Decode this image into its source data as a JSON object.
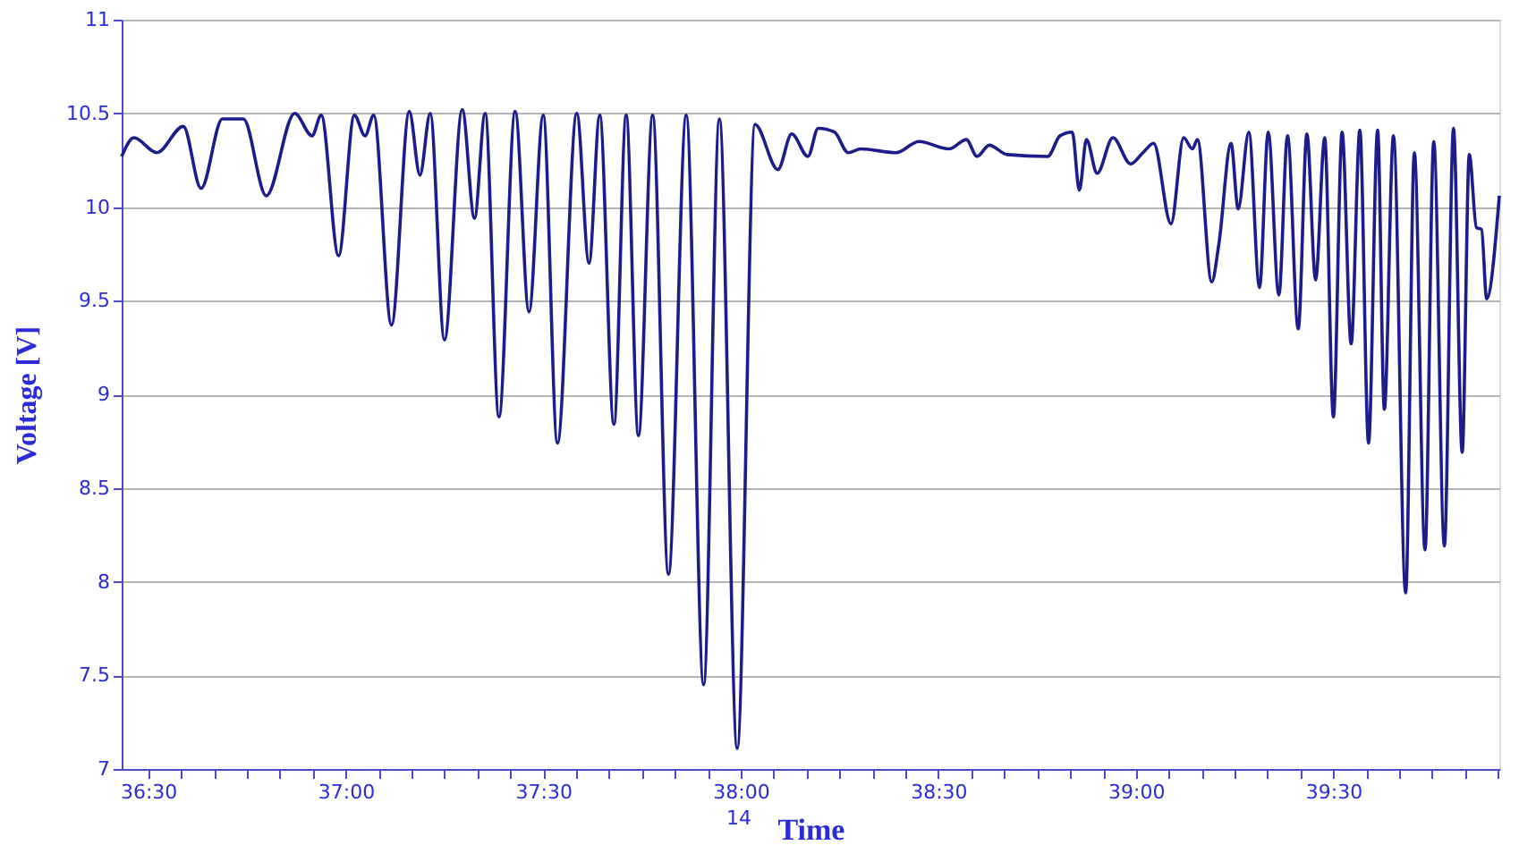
{
  "chart_data": {
    "type": "line",
    "xlabel": "Time",
    "ylabel": "Voltage [V]",
    "annotations": [
      "14"
    ],
    "xlim": [
      36.433,
      39.92
    ],
    "ylim": [
      7,
      11
    ],
    "xticks": [
      {
        "value": 36.5,
        "label": "36:30"
      },
      {
        "value": 36.583,
        "label": null
      },
      {
        "value": 36.667,
        "label": null
      },
      {
        "value": 36.75,
        "label": null
      },
      {
        "value": 36.833,
        "label": null
      },
      {
        "value": 36.917,
        "label": null
      },
      {
        "value": 37.0,
        "label": "37:00"
      },
      {
        "value": 37.083,
        "label": null
      },
      {
        "value": 37.167,
        "label": null
      },
      {
        "value": 37.25,
        "label": null
      },
      {
        "value": 37.333,
        "label": null
      },
      {
        "value": 37.417,
        "label": null
      },
      {
        "value": 37.5,
        "label": "37:30"
      },
      {
        "value": 37.583,
        "label": null
      },
      {
        "value": 37.667,
        "label": null
      },
      {
        "value": 37.75,
        "label": null
      },
      {
        "value": 37.833,
        "label": null
      },
      {
        "value": 37.917,
        "label": null
      },
      {
        "value": 38.0,
        "label": "38:00"
      },
      {
        "value": 38.083,
        "label": null
      },
      {
        "value": 38.167,
        "label": null
      },
      {
        "value": 38.25,
        "label": null
      },
      {
        "value": 38.333,
        "label": null
      },
      {
        "value": 38.417,
        "label": null
      },
      {
        "value": 38.5,
        "label": "38:30"
      },
      {
        "value": 38.583,
        "label": null
      },
      {
        "value": 38.667,
        "label": null
      },
      {
        "value": 38.75,
        "label": null
      },
      {
        "value": 38.833,
        "label": null
      },
      {
        "value": 38.917,
        "label": null
      },
      {
        "value": 39.0,
        "label": "39:00"
      },
      {
        "value": 39.083,
        "label": null
      },
      {
        "value": 39.167,
        "label": null
      },
      {
        "value": 39.25,
        "label": null
      },
      {
        "value": 39.333,
        "label": null
      },
      {
        "value": 39.417,
        "label": null
      },
      {
        "value": 39.5,
        "label": "39:30"
      },
      {
        "value": 39.583,
        "label": null
      },
      {
        "value": 39.667,
        "label": null
      },
      {
        "value": 39.75,
        "label": null
      },
      {
        "value": 39.833,
        "label": null
      },
      {
        "value": 39.917,
        "label": null
      }
    ],
    "yticks": [
      7,
      7.5,
      8,
      8.5,
      9,
      9.5,
      10,
      10.5,
      11
    ],
    "grid": "y",
    "marker": "none",
    "line_style": "solid",
    "series": [
      {
        "color": "#1c1c8a",
        "x": [
          36.433,
          36.464,
          36.522,
          36.589,
          36.634,
          36.688,
          36.741,
          36.799,
          36.871,
          36.915,
          36.938,
          36.982,
          37.022,
          37.049,
          37.071,
          37.116,
          37.161,
          37.188,
          37.214,
          37.25,
          37.295,
          37.326,
          37.353,
          37.388,
          37.429,
          37.464,
          37.5,
          37.536,
          37.585,
          37.616,
          37.643,
          37.679,
          37.71,
          37.741,
          37.777,
          37.817,
          37.862,
          37.906,
          37.946,
          37.991,
          38.036,
          38.094,
          38.129,
          38.17,
          38.196,
          38.237,
          38.272,
          38.304,
          38.393,
          38.451,
          38.527,
          38.571,
          38.598,
          38.629,
          38.674,
          38.777,
          38.808,
          38.839,
          38.857,
          38.875,
          38.902,
          38.942,
          38.987,
          39.018,
          39.045,
          39.089,
          39.121,
          39.143,
          39.156,
          39.192,
          39.21,
          39.241,
          39.259,
          39.286,
          39.313,
          39.335,
          39.362,
          39.384,
          39.411,
          39.433,
          39.455,
          39.478,
          39.5,
          39.522,
          39.545,
          39.567,
          39.589,
          39.612,
          39.629,
          39.652,
          39.683,
          39.705,
          39.732,
          39.754,
          39.781,
          39.804,
          39.826,
          39.844,
          39.862,
          39.875,
          39.888,
          39.92
        ],
        "values": [
          10.27,
          10.37,
          10.29,
          10.43,
          10.1,
          10.47,
          10.47,
          10.06,
          10.5,
          10.38,
          10.49,
          9.74,
          10.49,
          10.38,
          10.49,
          9.37,
          10.51,
          10.17,
          10.5,
          9.29,
          10.52,
          9.94,
          10.5,
          8.88,
          10.51,
          9.44,
          10.49,
          8.74,
          10.5,
          9.7,
          10.49,
          8.84,
          10.49,
          8.78,
          10.49,
          8.04,
          10.49,
          7.45,
          10.47,
          7.11,
          10.44,
          10.2,
          10.39,
          10.27,
          10.42,
          10.4,
          10.29,
          10.31,
          10.29,
          10.35,
          10.31,
          10.36,
          10.27,
          10.33,
          10.28,
          10.27,
          10.38,
          10.4,
          10.09,
          10.36,
          10.18,
          10.37,
          10.23,
          10.29,
          10.34,
          9.91,
          10.37,
          10.31,
          10.36,
          9.6,
          9.8,
          10.34,
          9.99,
          10.4,
          9.57,
          10.4,
          9.53,
          10.38,
          9.35,
          10.39,
          9.61,
          10.37,
          8.88,
          10.4,
          9.27,
          10.41,
          8.74,
          10.41,
          8.92,
          10.38,
          7.94,
          10.29,
          8.17,
          10.35,
          8.19,
          10.42,
          8.69,
          10.28,
          9.89,
          9.88,
          9.51,
          10.06
        ]
      }
    ]
  }
}
